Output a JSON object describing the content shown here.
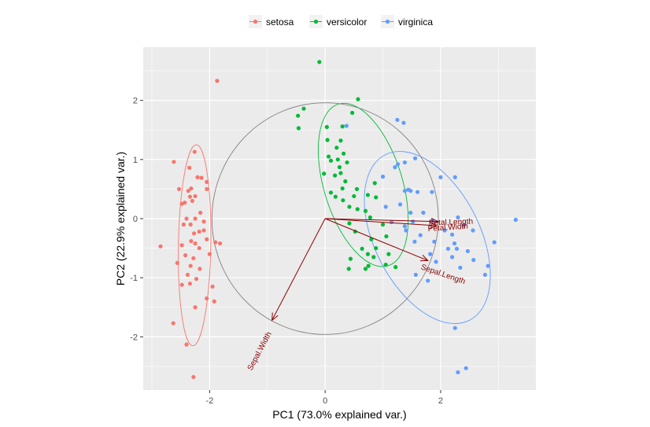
{
  "chart_data": {
    "type": "scatter",
    "title": "",
    "xlabel": "PC1 (73.0% explained var.)",
    "ylabel": "PC2 (22.9% explained var.)",
    "xlim": [
      -3.15,
      3.65
    ],
    "ylim": [
      -2.9,
      2.9
    ],
    "xticks": [
      -2,
      0,
      2
    ],
    "yticks": [
      -2,
      -1,
      0,
      1,
      2
    ],
    "x_tick_labels": [
      "-2",
      "0",
      "2"
    ],
    "y_tick_labels": [
      "-2",
      "-1",
      "0",
      "1",
      "2"
    ],
    "grid": true,
    "legend_position": "top",
    "legend": [
      {
        "name": "setosa",
        "color": "#F8766D"
      },
      {
        "name": "versicolor",
        "color": "#00BA38"
      },
      {
        "name": "virginica",
        "color": "#619CFF"
      }
    ],
    "series": [
      {
        "name": "setosa",
        "color": "#F8766D",
        "points": [
          [
            -1.87,
            2.33
          ],
          [
            -2.62,
            0.96
          ],
          [
            -2.35,
            0.86
          ],
          [
            -2.32,
            0.51
          ],
          [
            -2.37,
            0.47
          ],
          [
            -2.21,
            0.7
          ],
          [
            -2.53,
            0.5
          ],
          [
            -2.14,
            0.69
          ],
          [
            -2.34,
            0.37
          ],
          [
            -2.48,
            0.25
          ],
          [
            -2.26,
            1.13
          ],
          [
            -2.05,
            0.62
          ],
          [
            -2.43,
            0.27
          ],
          [
            -2.25,
            0.38
          ],
          [
            -2.05,
            0.5
          ],
          [
            -2.3,
            0.3
          ],
          [
            -2.16,
            0.1
          ],
          [
            -2.4,
            0.0
          ],
          [
            -2.25,
            0.0
          ],
          [
            -2.1,
            -0.05
          ],
          [
            -2.45,
            -0.1
          ],
          [
            -2.33,
            -0.1
          ],
          [
            -2.18,
            -0.22
          ],
          [
            -2.27,
            -0.25
          ],
          [
            -2.1,
            -0.2
          ],
          [
            -2.05,
            -0.35
          ],
          [
            -2.32,
            -0.38
          ],
          [
            -2.25,
            -0.42
          ],
          [
            -2.18,
            -0.5
          ],
          [
            -1.9,
            -0.4
          ],
          [
            -1.82,
            -0.42
          ],
          [
            -2.48,
            -0.45
          ],
          [
            -2.0,
            -0.6
          ],
          [
            -2.28,
            -0.67
          ],
          [
            -2.85,
            -0.47
          ],
          [
            -2.42,
            -0.62
          ],
          [
            -2.56,
            -0.75
          ],
          [
            -2.33,
            -0.8
          ],
          [
            -2.17,
            -0.85
          ],
          [
            -2.38,
            -0.95
          ],
          [
            -2.23,
            -1.02
          ],
          [
            -2.34,
            -1.1
          ],
          [
            -2.48,
            -1.12
          ],
          [
            -1.95,
            -1.15
          ],
          [
            -2.05,
            -1.35
          ],
          [
            -1.92,
            -1.4
          ],
          [
            -2.25,
            -1.5
          ],
          [
            -2.63,
            -1.77
          ],
          [
            -2.4,
            -2.13
          ],
          [
            -2.28,
            -2.68
          ]
        ]
      },
      {
        "name": "versicolor",
        "color": "#00BA38",
        "points": [
          [
            -0.1,
            2.65
          ],
          [
            0.57,
            2.02
          ],
          [
            -0.37,
            1.86
          ],
          [
            0.47,
            1.79
          ],
          [
            -0.46,
            1.53
          ],
          [
            -0.47,
            1.74
          ],
          [
            0.03,
            1.55
          ],
          [
            0.3,
            1.56
          ],
          [
            0.04,
            1.33
          ],
          [
            0.27,
            1.32
          ],
          [
            0.2,
            1.2
          ],
          [
            0.32,
            1.1
          ],
          [
            0.06,
            1.05
          ],
          [
            0.22,
            1.0
          ],
          [
            0.1,
            0.98
          ],
          [
            0.38,
            0.95
          ],
          [
            0.25,
            0.87
          ],
          [
            -0.02,
            0.76
          ],
          [
            0.27,
            0.77
          ],
          [
            0.17,
            0.73
          ],
          [
            0.35,
            0.63
          ],
          [
            0.86,
            0.6
          ],
          [
            0.3,
            0.51
          ],
          [
            0.55,
            0.5
          ],
          [
            0.74,
            0.4
          ],
          [
            0.1,
            0.44
          ],
          [
            0.5,
            0.38
          ],
          [
            0.18,
            0.37
          ],
          [
            0.88,
            0.36
          ],
          [
            0.31,
            0.31
          ],
          [
            0.42,
            0.2
          ],
          [
            0.56,
            0.16
          ],
          [
            0.7,
            0.13
          ],
          [
            0.78,
            0.02
          ],
          [
            0.42,
            -0.08
          ],
          [
            1.0,
            -0.1
          ],
          [
            0.52,
            -0.22
          ],
          [
            0.8,
            -0.35
          ],
          [
            1.06,
            -0.3
          ],
          [
            0.64,
            -0.51
          ],
          [
            0.88,
            -0.5
          ],
          [
            0.74,
            -0.6
          ],
          [
            1.1,
            -0.6
          ],
          [
            0.84,
            -0.65
          ],
          [
            0.44,
            -0.68
          ],
          [
            1.05,
            -0.78
          ],
          [
            0.75,
            -0.8
          ],
          [
            1.22,
            -0.82
          ],
          [
            0.41,
            -0.85
          ],
          [
            0.7,
            -0.85
          ]
        ]
      },
      {
        "name": "virginica",
        "color": "#619CFF",
        "points": [
          [
            1.25,
            1.67
          ],
          [
            1.36,
            1.62
          ],
          [
            0.37,
            1.57
          ],
          [
            1.56,
            1.02
          ],
          [
            1.38,
            0.95
          ],
          [
            1.26,
            0.92
          ],
          [
            1.21,
            0.87
          ],
          [
            1.0,
            0.71
          ],
          [
            1.44,
            0.49
          ],
          [
            1.6,
            0.45
          ],
          [
            1.48,
            0.47
          ],
          [
            2.0,
            0.7
          ],
          [
            2.25,
            0.7
          ],
          [
            1.38,
            0.47
          ],
          [
            1.85,
            0.45
          ],
          [
            1.3,
            0.24
          ],
          [
            1.05,
            0.2
          ],
          [
            1.48,
            0.1
          ],
          [
            1.7,
            0.1
          ],
          [
            2.3,
            0.02
          ],
          [
            1.52,
            -0.05
          ],
          [
            1.86,
            -0.03
          ],
          [
            1.15,
            -0.06
          ],
          [
            1.38,
            -0.13
          ],
          [
            2.4,
            -0.12
          ],
          [
            3.3,
            -0.02
          ],
          [
            1.4,
            -0.2
          ],
          [
            2.07,
            -0.2
          ],
          [
            1.65,
            -0.28
          ],
          [
            2.2,
            -0.27
          ],
          [
            2.56,
            -0.2
          ],
          [
            1.55,
            -0.39
          ],
          [
            1.89,
            -0.39
          ],
          [
            2.24,
            -0.42
          ],
          [
            2.13,
            -0.51
          ],
          [
            2.28,
            -0.51
          ],
          [
            2.47,
            -0.55
          ],
          [
            2.93,
            -0.4
          ],
          [
            1.82,
            -0.6
          ],
          [
            2.2,
            -0.65
          ],
          [
            2.57,
            -0.7
          ],
          [
            1.92,
            -0.73
          ],
          [
            2.34,
            -0.83
          ],
          [
            2.82,
            -0.8
          ],
          [
            2.77,
            -0.95
          ],
          [
            1.57,
            -0.95
          ],
          [
            1.78,
            -1.05
          ],
          [
            2.25,
            -1.85
          ],
          [
            2.44,
            -2.53
          ],
          [
            2.3,
            -2.6
          ]
        ]
      }
    ],
    "ellipses": [
      {
        "name": "setosa",
        "color": "#F8766D",
        "cx": -2.26,
        "cy": -0.45,
        "rx": 0.28,
        "ry": 1.7,
        "angle": 1
      },
      {
        "name": "versicolor",
        "color": "#00BA38",
        "cx": 0.66,
        "cy": 0.57,
        "rx": 0.68,
        "ry": 1.43,
        "angle": -17
      },
      {
        "name": "virginica",
        "color": "#619CFF",
        "cx": 1.77,
        "cy": -0.32,
        "rx": 0.91,
        "ry": 1.57,
        "angle": -27
      },
      {
        "name": "correlation-circle",
        "color": "#808080",
        "cx": 0,
        "cy": 0,
        "rx": 1.96,
        "ry": 1.96,
        "angle": 0
      }
    ],
    "arrows": [
      {
        "label": "Petal.Length",
        "x": 1.96,
        "y": -0.05,
        "label_x": 2.18,
        "label_y": -0.1,
        "angle": -2
      },
      {
        "label": "Petal.Width",
        "x": 1.93,
        "y": -0.12,
        "label_x": 2.13,
        "label_y": -0.19,
        "angle": -4
      },
      {
        "label": "Sepal.Length",
        "x": 1.78,
        "y": -0.71,
        "label_x": 2.03,
        "label_y": -0.98,
        "angle": 19
      },
      {
        "label": "Sepal.Width",
        "x": -0.92,
        "y": -1.72,
        "label_x": -1.1,
        "label_y": -2.26,
        "angle": -62
      }
    ]
  }
}
